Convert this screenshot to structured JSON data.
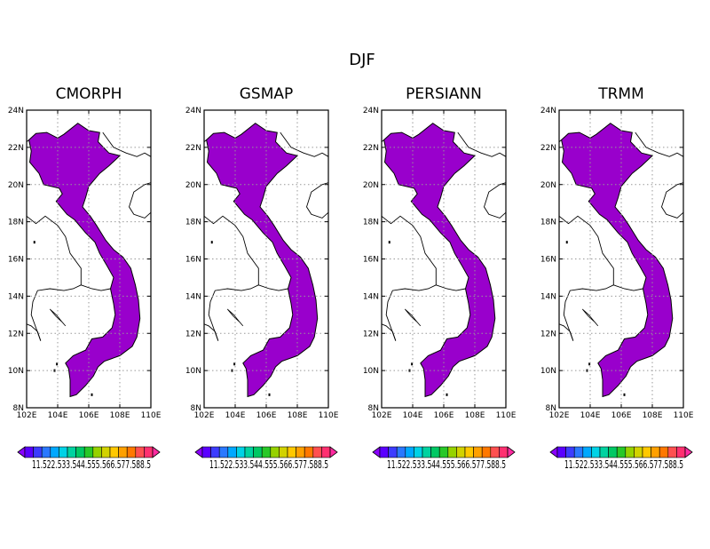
{
  "figure": {
    "title": "DJF"
  },
  "panels": [
    {
      "title": "CMORPH"
    },
    {
      "title": "GSMAP"
    },
    {
      "title": "PERSIANN"
    },
    {
      "title": "TRMM"
    }
  ],
  "axes": {
    "lon_ticks": [
      "102E",
      "104E",
      "106E",
      "108E",
      "110E"
    ],
    "lat_ticks": [
      "24N",
      "22N",
      "20N",
      "18N",
      "16N",
      "14N",
      "12N",
      "10N",
      "8N"
    ],
    "lon_range": [
      102,
      110
    ],
    "lat_range": [
      8,
      24
    ],
    "grid": "dotted"
  },
  "colorbar": {
    "label_text": "11.522.533.544.555.566.577.588.5",
    "levels": [
      1,
      1.5,
      2,
      2.5,
      3,
      3.5,
      4,
      4.5,
      5,
      5.5,
      6,
      6.5,
      7,
      7.5,
      8,
      8.5
    ],
    "colors": [
      "#8a00ff",
      "#5a00ff",
      "#3c3cff",
      "#2a78ff",
      "#00a8ff",
      "#00d2e6",
      "#00d2a0",
      "#00c864",
      "#28c828",
      "#96d200",
      "#d2d200",
      "#ffc800",
      "#ffa000",
      "#ff7800",
      "#ff5050",
      "#ff3070",
      "#ff2aa0"
    ]
  },
  "map": {
    "fill_color": "#9900cc",
    "border_color": "#000000"
  }
}
